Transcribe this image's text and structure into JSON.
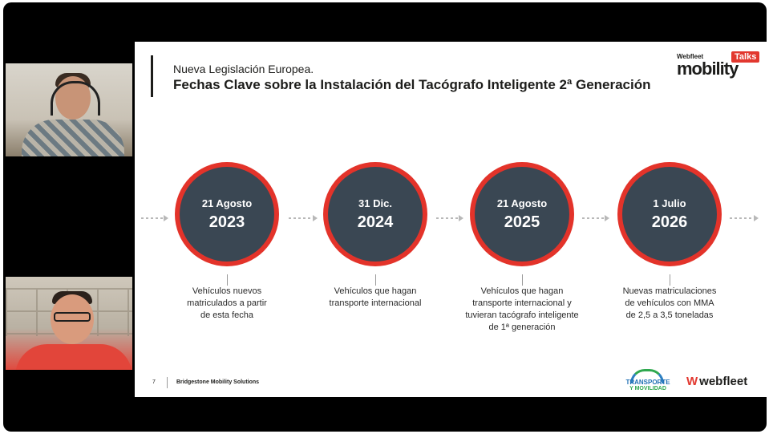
{
  "participants": [
    {
      "name": "participant-1"
    },
    {
      "name": "participant-2"
    }
  ],
  "slide": {
    "subtitle": "Nueva Legislación Europea.",
    "title": "Fechas Clave sobre la Instalación del Tacógrafo Inteligente 2ª Generación",
    "brand": {
      "small": "Webfleet",
      "big": "mobility",
      "tag": "Talks"
    },
    "milestones": [
      {
        "day": "21 Agosto",
        "year": "2023",
        "desc": [
          "Vehículos nuevos",
          "matriculados a partir",
          "de esta fecha"
        ]
      },
      {
        "day": "31 Dic.",
        "year": "2024",
        "desc": [
          "Vehículos que hagan",
          "transporte internacional"
        ]
      },
      {
        "day": "21 Agosto",
        "year": "2025",
        "desc": [
          "Vehículos que hagan",
          "transporte internacional y",
          "tuvieran tacógrafo inteligente",
          "de 1ª generación"
        ]
      },
      {
        "day": "1 Julio",
        "year": "2026",
        "desc": [
          "Nuevas matriculaciones",
          "de vehículos con MMA",
          "de 2,5 a 3,5 toneladas"
        ]
      }
    ],
    "footer": {
      "page": "7",
      "company": "Bridgestone Mobility Solutions"
    },
    "logos": {
      "transporte_line1": "TRANSPORTE",
      "transporte_line2": "Y MOVILIDAD",
      "webfleet_mark": "W",
      "webfleet_text": "webfleet"
    },
    "colors": {
      "accent": "#e3332a",
      "circle": "#3a4753"
    }
  }
}
